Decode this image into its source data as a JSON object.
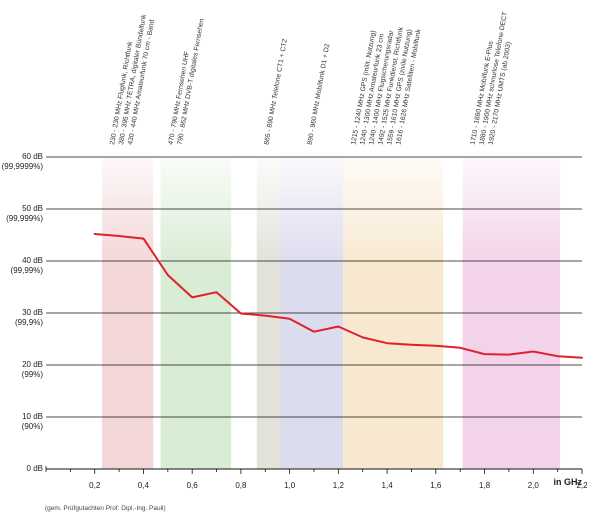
{
  "chart_data": {
    "type": "line",
    "title": "",
    "xlabel": "in GHz",
    "ylabel": "",
    "xlim": [
      0.0,
      2.2
    ],
    "ylim": [
      0,
      60
    ],
    "x_ticks": [
      "0,2",
      "0,4",
      "0,6",
      "0,8",
      "1,0",
      "1,2",
      "1,4",
      "1,6",
      "1,8",
      "2,0",
      "2,2"
    ],
    "x_tick_values": [
      0.2,
      0.4,
      0.6,
      0.8,
      1.0,
      1.2,
      1.4,
      1.6,
      1.8,
      2.0,
      2.2
    ],
    "y_ticks": [
      {
        "value": 60,
        "db": "60 dB",
        "pct": "(99,9999%)"
      },
      {
        "value": 50,
        "db": "50 dB",
        "pct": "(99,999%)"
      },
      {
        "value": 40,
        "db": "40 dB",
        "pct": "(99,99%)"
      },
      {
        "value": 30,
        "db": "30 dB",
        "pct": "(99,9%)"
      },
      {
        "value": 20,
        "db": "20 dB",
        "pct": "(99%)"
      },
      {
        "value": 10,
        "db": "10 dB",
        "pct": "(90%)"
      },
      {
        "value": 0,
        "db": "0 dB",
        "pct": ""
      }
    ],
    "grid": true,
    "series": [
      {
        "color": "#e0202c",
        "x": [
          0.2,
          0.3,
          0.4,
          0.5,
          0.6,
          0.7,
          0.8,
          0.9,
          1.0,
          1.1,
          1.2,
          1.3,
          1.4,
          1.5,
          1.6,
          1.7,
          1.8,
          1.9,
          2.0,
          2.1,
          2.2
        ],
        "y": [
          45.2,
          44.8,
          44.3,
          37.3,
          33.0,
          34.0,
          29.9,
          29.5,
          28.9,
          26.4,
          27.4,
          25.3,
          24.2,
          23.9,
          23.7,
          23.3,
          22.1,
          22.0,
          22.6,
          21.7,
          21.4
        ]
      }
    ],
    "bands": [
      {
        "x0": 0.23,
        "x1": 0.44,
        "color": "#f3d6d8",
        "labels": [
          "230 - 230 MHz Flugfunk, Richtfunk",
          "380 - 395 MHz TETRA, digitaler Bündelfunk",
          "430 - 440 MHz Amateurfunk 70 cm - Band"
        ]
      },
      {
        "x0": 0.47,
        "x1": 0.76,
        "color": "#d9ecd4",
        "labels": [
          "470 - 790 MHz Fernsehen UHF",
          "790 - 862 MHz DVB-T digitales Fernsehen"
        ]
      },
      {
        "x0": 0.865,
        "x1": 0.96,
        "color": "#e2e2da",
        "labels": [
          "865 - 890 MHz Telefone CT1 + CT2"
        ]
      },
      {
        "x0": 0.96,
        "x1": 1.22,
        "color": "#dcdcef",
        "labels": [
          "890 - 960 MHz Mobilfunk D1 + D2"
        ]
      },
      {
        "x0": 1.22,
        "x1": 1.63,
        "color": "#f8e8d0",
        "labels": [
          "1215 - 1240 MHz GPS (milit. Nutzung)",
          "1240 - 1300 MHz Amateurfunk 23 cm",
          "1240 - 1400 MHz Flugsicherungsradar",
          "1492 - 1525 MHz Funkdienst, Richtfunk",
          "1559 - 1610 MHz GPS (zivile Nutzung)",
          "1616 - 1626 MHz Satelliten - Mobilfunk"
        ]
      },
      {
        "x0": 1.71,
        "x1": 2.11,
        "color": "#f3d3ea",
        "labels": [
          "1710 - 1880 MHz Mobilfunk E-Plus",
          "1880 - 1900 MHz schnurlose Telefone DECT",
          "1920 - 2170 MHz UMTS (ab 2003)"
        ]
      }
    ],
    "footnote": "(gem. Prüfgutachten Prof. Dipl.-Ing. Pauli)"
  }
}
